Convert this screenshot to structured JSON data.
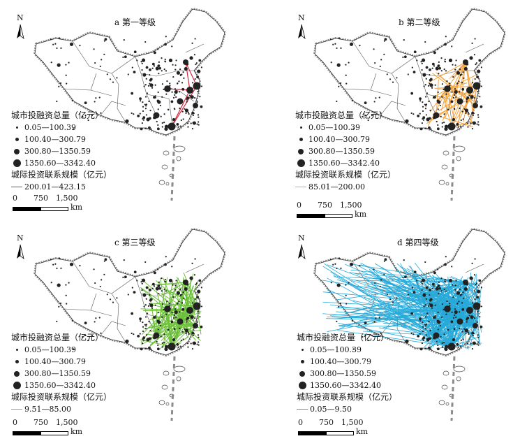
{
  "panels": [
    {
      "title": "a 第一等级",
      "line_color": "#d7263d",
      "link_label": "200.01—423.15",
      "link_count": 6
    },
    {
      "title": "b 第二等级",
      "line_color": "#f5a23a",
      "link_label": "85.01—200.00",
      "link_count": 55
    },
    {
      "title": "c 第三等级",
      "line_color": "#6cbf3b",
      "link_label": "9.51—85.00",
      "link_count": 140
    },
    {
      "title": "d 第四等级",
      "line_color": "#27a9d8",
      "link_label": "0.05—9.50",
      "link_count": 420
    }
  ],
  "north_label": "N",
  "legend": {
    "total_title": "城市投融资总量（亿元）",
    "classes": [
      "0.05—100.39",
      "100.40—300.79",
      "300.80—1350.59",
      "1350.60—3342.40"
    ],
    "link_title": "城际投资联系规模（亿元）"
  },
  "scale": {
    "labels": [
      "0",
      "750",
      "1,500"
    ],
    "unit": "km"
  },
  "colors": {
    "boundary": "#555555",
    "coast": "#8c8c8c",
    "city": "#222222"
  }
}
